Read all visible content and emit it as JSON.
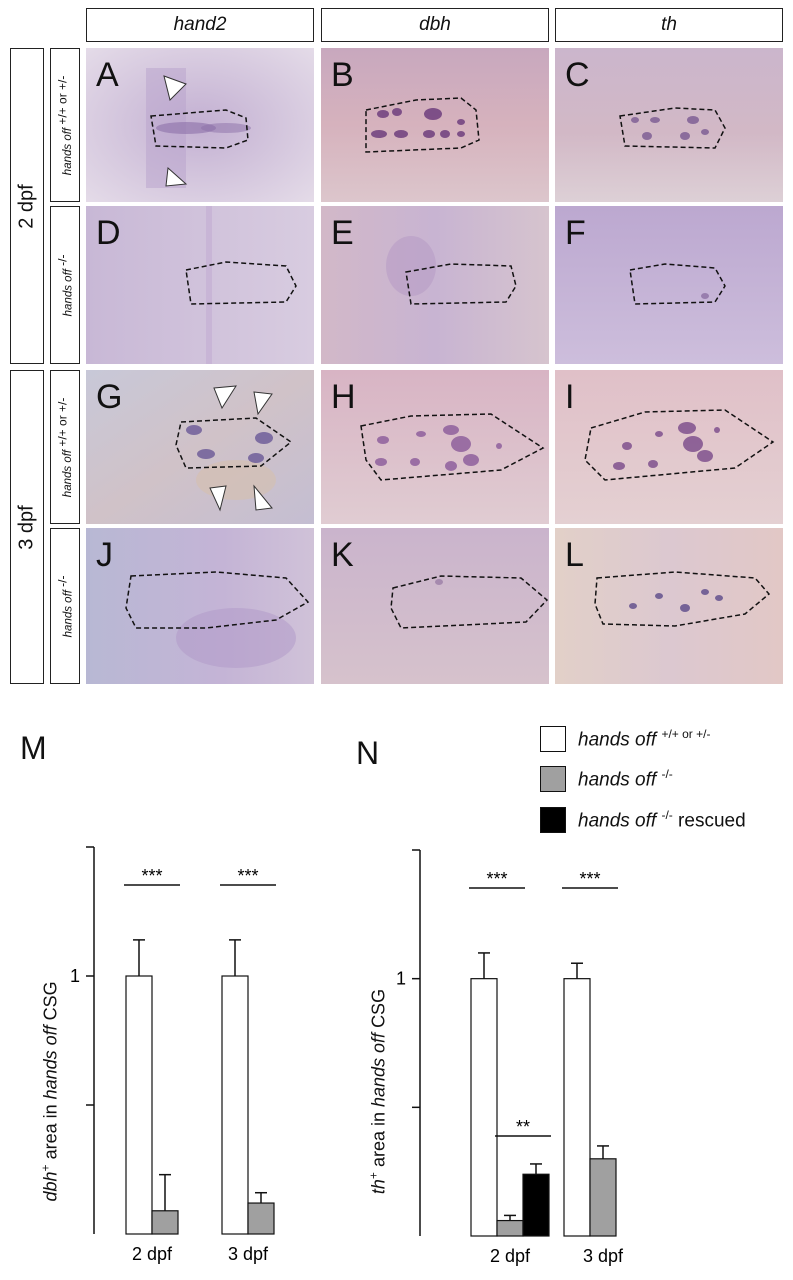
{
  "column_headers": [
    "hand2",
    "dbh",
    "th"
  ],
  "stage_labels": [
    "2 dpf",
    "3 dpf"
  ],
  "genotype_labels": {
    "het": {
      "name": "hands off",
      "sup": "+/+ or +/-"
    },
    "mut": {
      "name": "hands off",
      "sup": "-/-"
    }
  },
  "panel_letters": [
    "A",
    "B",
    "C",
    "D",
    "E",
    "F",
    "G",
    "H",
    "I",
    "J",
    "K",
    "L"
  ],
  "panel_colors": {
    "hand2_2dpf_het": "#cfc0d6",
    "dbh_2dpf_het": "#d8b8c4",
    "th_2dpf_het": "#d6c2cf",
    "hand2_2dpf_mut": "#d0c0d8",
    "dbh_2dpf_mut": "#d4bccb",
    "th_2dpf_mut": "#c8b8d6",
    "hand2_3dpf_het": "#cbc4c8",
    "dbh_3dpf_het": "#dcbfca",
    "th_3dpf_het": "#e0c5cc",
    "hand2_3dpf_mut": "#c2b6d0",
    "dbh_3dpf_mut": "#d2bccb",
    "th_3dpf_mut": "#e1cccc"
  },
  "figure_letters": {
    "m": "M",
    "n": "N"
  },
  "legend": [
    {
      "color": "#ffffff",
      "name": "hands off",
      "sup": "+/+ or +/-",
      "suffix": ""
    },
    {
      "color": "#a0a0a0",
      "name": "hands off",
      "sup": "-/-",
      "suffix": ""
    },
    {
      "color": "#000000",
      "name": "hands off",
      "sup": "-/-",
      "suffix": " rescued"
    }
  ],
  "chart_data": [
    {
      "panel": "M",
      "type": "bar",
      "categories": [
        "2 dpf",
        "3 dpf"
      ],
      "ylabel": {
        "gene": "dbh",
        "gene_sup": "+",
        "middle": " area in ",
        "name": "hands off",
        "suffix": " CSG"
      },
      "ylim": [
        0,
        1.5
      ],
      "yticks": [
        {
          "value": 1,
          "label": "1"
        },
        {
          "value": 0.5,
          "label": ""
        }
      ],
      "series": [
        {
          "color": "#ffffff",
          "values": [
            1.0,
            1.0
          ],
          "errors": [
            0.14,
            0.14
          ]
        },
        {
          "color": "#a0a0a0",
          "values": [
            0.09,
            0.12
          ],
          "errors": [
            0.14,
            0.04
          ]
        }
      ],
      "significance": [
        {
          "category": 0,
          "pair": [
            0,
            1
          ],
          "label": "***"
        },
        {
          "category": 1,
          "pair": [
            0,
            1
          ],
          "label": "***"
        }
      ]
    },
    {
      "panel": "N",
      "type": "bar",
      "categories": [
        "2 dpf",
        "3 dpf"
      ],
      "ylabel": {
        "gene": "th",
        "gene_sup": "+",
        "middle": " area in ",
        "name": "hands off",
        "suffix": " CSG"
      },
      "ylim": [
        0,
        1.5
      ],
      "yticks": [
        {
          "value": 1,
          "label": "1"
        },
        {
          "value": 0.5,
          "label": ""
        }
      ],
      "series": [
        {
          "color": "#ffffff",
          "values": [
            1.0,
            1.0
          ],
          "errors": [
            0.1,
            0.06
          ]
        },
        {
          "color": "#a0a0a0",
          "values": [
            0.06,
            0.3
          ],
          "errors": [
            0.02,
            0.05
          ]
        },
        {
          "color": "#000000",
          "values": [
            0.24,
            null
          ],
          "errors": [
            0.04,
            null
          ]
        }
      ],
      "significance": [
        {
          "category": 0,
          "pair": [
            0,
            1
          ],
          "label": "***"
        },
        {
          "category": 0,
          "pair": [
            1,
            2
          ],
          "label": "**"
        },
        {
          "category": 1,
          "pair": [
            0,
            1
          ],
          "label": "***"
        }
      ]
    }
  ]
}
